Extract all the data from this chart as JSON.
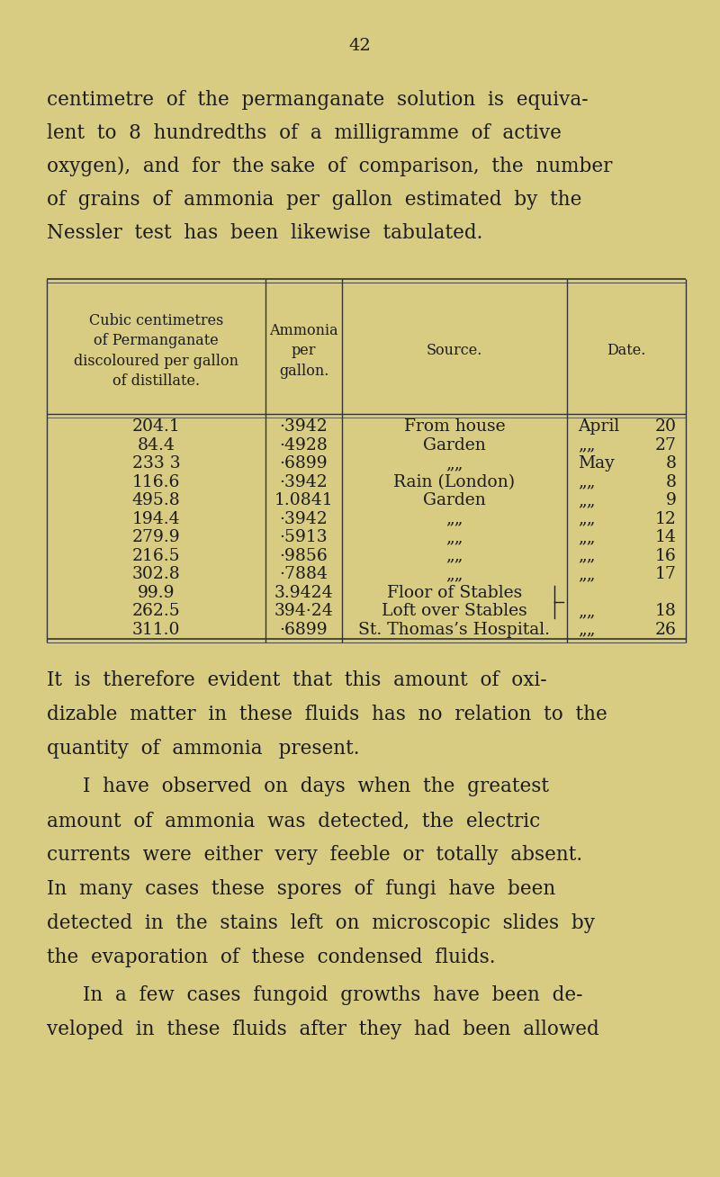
{
  "bg_color": "#d8cc82",
  "page_number": "42",
  "intro_lines": [
    "centimetre  of  the  permanganate  solution  is  equiva-",
    "lent  to  8  hundredths  of  a  milligramme  of  active",
    "oxygen),  and  for  the sake  of  comparison,  the  number",
    "of  grains  of  ammonia  per  gallon  estimated  by  the",
    "Nessler  test  has  been  likewise  tabulated."
  ],
  "col_headers": [
    "Cubic centimetres\nof Permanganate\ndiscoloured per gallon\nof distillate.",
    "Ammonia\nper\ngallon.",
    "Source.",
    "Date."
  ],
  "table_rows": [
    [
      "204.1",
      "·3942",
      "From house",
      "April",
      "20"
    ],
    [
      "84.4",
      "·4928",
      "Garden",
      "„„",
      "27"
    ],
    [
      "233 3",
      "·6899",
      "„„",
      "May",
      "8"
    ],
    [
      "116.6",
      "·3942",
      "Rain (London)",
      "„„",
      "8"
    ],
    [
      "495.8",
      "1.0841",
      "Garden",
      "„„",
      "9"
    ],
    [
      "194.4",
      "·3942",
      "„„",
      "„„",
      "12"
    ],
    [
      "279.9",
      "·5913",
      "„„",
      "„„",
      "14"
    ],
    [
      "216.5",
      "·9856",
      "„„",
      "„„",
      "16"
    ],
    [
      "302.8",
      "·7884",
      "„„",
      "„„",
      "17"
    ],
    [
      "99.9",
      "3.9424",
      "Floor of Stables",
      "",
      ""
    ],
    [
      "262.5",
      "394·24",
      "Loft over Stables",
      "„„",
      "18"
    ],
    [
      "311.0",
      "·6899",
      "St. Thomas’s Hospital.",
      "„„",
      "26"
    ]
  ],
  "body_paragraphs": [
    [
      "It  is  therefore  evident  that  this  amount  of  oxi-",
      "dizable  matter  in  these  fluids  has  no  relation  to  the",
      "quantity  of  ammonia   present."
    ],
    [
      "I  have  observed  on  days  when  the  greatest",
      "amount  of  ammonia  was  detected,  the  electric",
      "currents  were  either  very  feeble  or  totally  absent.",
      "In  many  cases  these  spores  of  fungi  have  been",
      "detected  in  the  stains  left  on  microscopic  slides  by",
      "the  evaporation  of  these  condensed  fluids."
    ],
    [
      "In  a  few  cases  fungoid  growths  have  been  de-",
      "veloped  in  these  fluids  after  they  had  been  allowed"
    ]
  ],
  "text_color": "#1c1c1c",
  "line_color": "#333333",
  "font_size_pagenum": 14,
  "font_size_intro": 15.5,
  "font_size_header": 11.5,
  "font_size_data": 13.5,
  "font_size_body": 15.5
}
